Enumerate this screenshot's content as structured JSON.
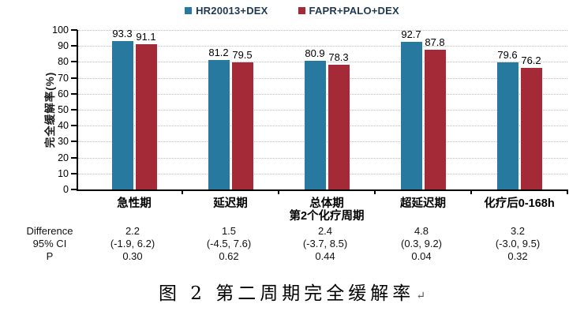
{
  "chart_data": {
    "type": "bar",
    "title": "",
    "ylabel": "完全缓解率(%)",
    "ylim": [
      0,
      100
    ],
    "ytick_step": 10,
    "grid": "dotted-horizontal",
    "legend_position": "top-center",
    "categories": [
      [
        "急性期"
      ],
      [
        "延迟期"
      ],
      [
        "总体期",
        "第2个化疗周期"
      ],
      [
        "超延迟期"
      ],
      [
        "化疗后0-168h"
      ]
    ],
    "series": [
      {
        "name": "HR20013+DEX",
        "color": "#2879A0",
        "values": [
          93.3,
          81.2,
          80.9,
          92.7,
          79.6
        ]
      },
      {
        "name": "FAPR+PALO+DEX",
        "color": "#A42A38",
        "values": [
          91.1,
          79.5,
          78.3,
          87.8,
          76.2
        ]
      }
    ],
    "stats": {
      "rows": [
        {
          "label": "Difference",
          "values": [
            "2.2",
            "1.5",
            "2.4",
            "4.8",
            "3.2"
          ]
        },
        {
          "label": "95% CI",
          "values": [
            "(-1.9, 6.2)",
            "(-4.5, 7.6)",
            "(-3.7, 8.5)",
            "(0.3, 9.2)",
            "(-3.0, 9.5)"
          ]
        },
        {
          "label": "P",
          "values": [
            "0.30",
            "0.62",
            "0.44",
            "0.04",
            "0.32"
          ]
        }
      ]
    }
  },
  "caption": {
    "text": "图 2 第二周期完全缓解率",
    "mark": "↵"
  }
}
